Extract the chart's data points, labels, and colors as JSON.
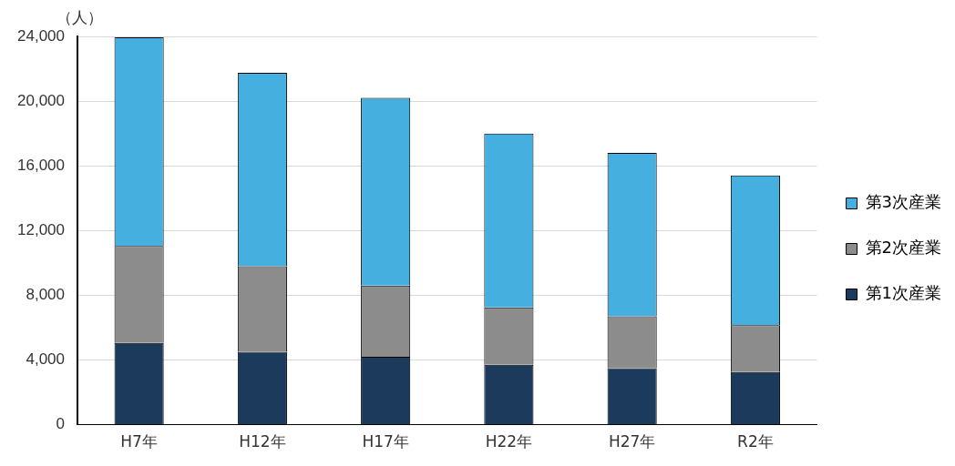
{
  "chart_data": {
    "type": "bar",
    "stacked": true,
    "ylabel": "（人）",
    "categories": [
      "H7年",
      "H12年",
      "H17年",
      "H22年",
      "H27年",
      "R2年"
    ],
    "series": [
      {
        "name": "第1次産業",
        "color": "#1b3a5c",
        "values": [
          5050,
          4500,
          4200,
          3700,
          3500,
          3250
        ]
      },
      {
        "name": "第2次産業",
        "color": "#8c8c8c",
        "values": [
          6000,
          5300,
          4400,
          3550,
          3200,
          2900
        ]
      },
      {
        "name": "第3次産業",
        "color": "#45b0e0",
        "values": [
          12900,
          11950,
          11600,
          10750,
          10100,
          9250
        ]
      }
    ],
    "ylim": [
      0,
      24000
    ],
    "yticks": [
      0,
      {
        "value": 4000,
        "label": "4,000"
      },
      {
        "value": 8000,
        "label": "8,000"
      },
      {
        "value": 12000,
        "label": "12,000"
      },
      {
        "value": 16000,
        "label": "16,000"
      },
      {
        "value": 20000,
        "label": "20,000"
      },
      {
        "value": 24000,
        "label": "24,000"
      }
    ],
    "grid": "y",
    "legend": "right"
  }
}
